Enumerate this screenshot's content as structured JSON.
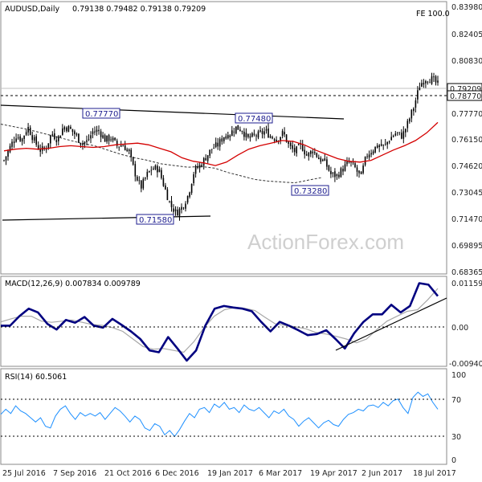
{
  "header": {
    "symbol": "AUDUSD,Daily",
    "ohlc": "0.79138 0.79482 0.79138 0.79209",
    "fe_label": "FE 100.0"
  },
  "watermark": "ActionForex.com",
  "colors": {
    "candle": "#000000",
    "sma_red": "#d40000",
    "sma_dashed": "#333333",
    "macd_line": "#000080",
    "signal_line": "#a8a8a8",
    "rsi_line": "#1e90ff",
    "annotation": "#1d1d8f"
  },
  "chart_data": [
    {
      "type": "candlestick",
      "title": "AUDUSD,Daily",
      "ohlc_last": [
        0.79138,
        0.79482,
        0.79138,
        0.79209
      ],
      "y_ticks": [
        "0.83980",
        "0.82405",
        "0.80830",
        "0.77770",
        "0.76150",
        "0.74620",
        "0.73045",
        "0.71470",
        "0.69895",
        "0.68365"
      ],
      "ylim": [
        0.6837,
        0.8415
      ],
      "price_tags": [
        "0.79209",
        "0.78770"
      ],
      "annotations": [
        "0.77770",
        "0.77480",
        "0.73280",
        "0.71580"
      ],
      "levels": {
        "fe_line": 0.7921,
        "dotted_level": 0.7877
      },
      "trendlines": [
        {
          "from": [
            "25 Jul 2016",
            0.7795
          ],
          "to": [
            "30 Apr 2017",
            0.7755
          ]
        },
        {
          "from": [
            "25 Jul 2016",
            0.7145
          ],
          "to": [
            "30 Dec 2016",
            0.7168
          ]
        }
      ],
      "series": [
        {
          "name": "price",
          "values": [
            0.7495,
            0.757,
            0.764,
            0.7615,
            0.769,
            0.7615,
            0.7555,
            0.756,
            0.7655,
            0.7615,
            0.769,
            0.768,
            0.7645,
            0.7595,
            0.7605,
            0.7665,
            0.7665,
            0.7615,
            0.7625,
            0.758,
            0.7585,
            0.7545,
            0.7425,
            0.7335,
            0.741,
            0.745,
            0.7445,
            0.734,
            0.7235,
            0.719,
            0.7225,
            0.7295,
            0.7435,
            0.7465,
            0.7515,
            0.7565,
            0.7585,
            0.7635,
            0.765,
            0.7685,
            0.7675,
            0.762,
            0.7635,
            0.7645,
            0.7665,
            0.763,
            0.762,
            0.7655,
            0.7575,
            0.7545,
            0.7585,
            0.752,
            0.7555,
            0.7505,
            0.7485,
            0.7415,
            0.7405,
            0.7445,
            0.7485,
            0.7455,
            0.7395,
            0.7525,
            0.7555,
            0.7585,
            0.7575,
            0.7625,
            0.7655,
            0.7635,
            0.7715,
            0.781,
            0.7935,
            0.797,
            0.7965,
            0.7935
          ]
        },
        {
          "name": "SMA red",
          "values": [
            0.755,
            0.756,
            0.7565,
            0.756,
            0.7565,
            0.7575,
            0.758,
            0.7575,
            0.757,
            0.7575,
            0.7585,
            0.759,
            0.7595,
            0.7585,
            0.7565,
            0.7545,
            0.751,
            0.749,
            0.748,
            0.7465,
            0.7485,
            0.7525,
            0.756,
            0.758,
            0.7595,
            0.761,
            0.7605,
            0.7585,
            0.7555,
            0.753,
            0.7505,
            0.749,
            0.7485,
            0.7495,
            0.7525,
            0.7555,
            0.758,
            0.761,
            0.7655,
            0.7715
          ]
        },
        {
          "name": "SMA dashed",
          "values": [
            0.7705,
            0.769,
            0.7675,
            0.7655,
            0.7635,
            0.7615,
            0.7595,
            0.758,
            0.7555,
            0.753,
            0.751,
            0.7495,
            0.7475,
            0.7465,
            0.7455,
            0.746,
            0.745,
            0.7425,
            0.7405,
            0.7385,
            0.7375,
            0.737,
            0.7365,
            0.738,
            0.7395
          ]
        }
      ],
      "x_ticks": [
        "25 Jul 2016",
        "7 Sep 2016",
        "21 Oct 2016",
        "6 Dec 2016",
        "19 Jan 2017",
        "6 Mar 2017",
        "19 Apr 2017",
        "2 Jun 2017",
        "18 Jul 2017"
      ]
    },
    {
      "type": "line",
      "title": "MACD(12,26,9) 0.007834 0.009789",
      "y_ticks": [
        "0.01159",
        "0.00",
        "-0.00940"
      ],
      "ylim": [
        -0.0107,
        0.013
      ],
      "series": [
        {
          "name": "MACD",
          "values": [
            0.0,
            0.0,
            0.0025,
            0.0045,
            0.0035,
            0.0005,
            -0.001,
            0.0015,
            0.0008,
            0.0023,
            0.0,
            -0.0005,
            0.0018,
            0.0002,
            -0.0015,
            -0.0035,
            -0.0065,
            -0.007,
            -0.003,
            -0.006,
            -0.0092,
            -0.0065,
            0.0,
            0.0045,
            0.0052,
            0.0048,
            0.0045,
            0.0038,
            0.001,
            -0.0015,
            0.001,
            0.0,
            -0.0012,
            -0.0025,
            -0.0022,
            -0.0012,
            -0.0035,
            -0.006,
            -0.002,
            0.001,
            0.003,
            0.003,
            0.0055,
            0.0035,
            0.0052,
            0.0112,
            0.0108,
            0.0078
          ]
        },
        {
          "name": "Signal",
          "values": [
            0.001,
            0.0018,
            0.0025,
            0.0025,
            0.0012,
            0.0009,
            0.0012,
            0.0015,
            0.0009,
            0.0003,
            0.0001,
            -0.0005,
            -0.0015,
            -0.0035,
            -0.0055,
            -0.0062,
            -0.006,
            -0.0065,
            -0.007,
            -0.0042,
            -0.0005,
            0.0025,
            0.0042,
            0.0048,
            0.0046,
            0.004,
            0.0022,
            0.0005,
            0.0001,
            -0.0003,
            -0.0008,
            -0.0018,
            -0.0022,
            -0.0028,
            -0.0035,
            -0.0045,
            -0.0035,
            -0.001,
            0.0012,
            0.0025,
            0.0038,
            0.0042,
            0.0068,
            0.0098
          ]
        }
      ],
      "trendline": {
        "from": [
          "19 Apr 2017",
          -0.0068
        ],
        "to": [
          "end",
          0.0028
        ]
      }
    },
    {
      "type": "line",
      "title": "RSI(14) 60.5061",
      "y_ticks": [
        "100",
        "70",
        "30",
        "0"
      ],
      "ylim": [
        0,
        100
      ],
      "levels": [
        70,
        30
      ],
      "series": [
        {
          "name": "RSI(14)",
          "values": [
            54,
            60,
            55,
            64,
            58,
            55,
            50,
            45,
            50,
            40,
            38,
            52,
            60,
            64,
            55,
            48,
            56,
            52,
            55,
            52,
            56,
            48,
            55,
            62,
            58,
            52,
            45,
            52,
            48,
            38,
            35,
            43,
            40,
            30,
            35,
            28,
            36,
            46,
            55,
            50,
            60,
            62,
            56,
            66,
            62,
            68,
            60,
            62,
            56,
            65,
            60,
            58,
            62,
            56,
            50,
            58,
            55,
            60,
            52,
            48,
            40,
            46,
            50,
            44,
            38,
            44,
            47,
            42,
            40,
            48,
            54,
            56,
            60,
            58,
            64,
            65,
            62,
            68,
            64,
            70,
            72,
            62,
            55,
            74,
            80,
            75,
            78,
            68,
            60
          ]
        }
      ]
    }
  ]
}
